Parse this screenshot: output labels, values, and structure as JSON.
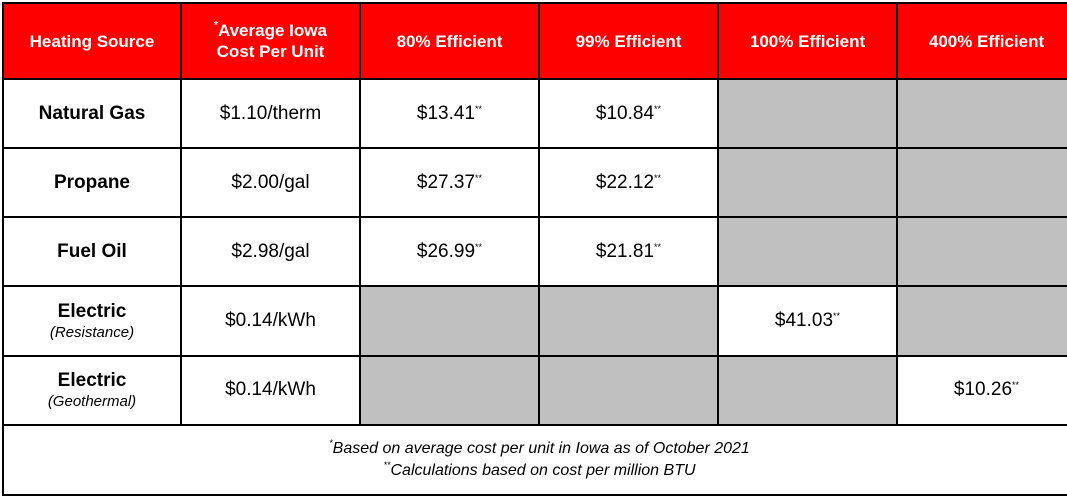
{
  "headers": [
    {
      "text": "Heating Source",
      "sup": ""
    },
    {
      "text": "Average Iowa Cost Per Unit",
      "line1": "Average Iowa",
      "line2": "Cost Per Unit",
      "sup": "*"
    },
    {
      "text": "80% Efficient",
      "sup": ""
    },
    {
      "text": "99% Efficient",
      "sup": ""
    },
    {
      "text": "100% Efficient",
      "sup": ""
    },
    {
      "text": "400% Efficient",
      "sup": ""
    }
  ],
  "rows": [
    {
      "source": "Natural Gas",
      "sub": "",
      "cost": "$1.10/therm",
      "cells": [
        "$13.41",
        "$10.84",
        null,
        null
      ]
    },
    {
      "source": "Propane",
      "sub": "",
      "cost": "$2.00/gal",
      "cells": [
        "$27.37",
        "$22.12",
        null,
        null
      ]
    },
    {
      "source": "Fuel Oil",
      "sub": "",
      "cost": "$2.98/gal",
      "cells": [
        "$26.99",
        "$21.81",
        null,
        null
      ]
    },
    {
      "source": "Electric",
      "sub": "(Resistance)",
      "cost": "$0.14/kWh",
      "cells": [
        null,
        null,
        "$41.03",
        null
      ]
    },
    {
      "source": "Electric",
      "sub": "(Geothermal)",
      "cost": "$0.14/kWh",
      "cells": [
        null,
        null,
        null,
        "$10.26"
      ]
    }
  ],
  "value_marker": "**",
  "footnotes": [
    {
      "marker": "*",
      "text": "Based on average cost per unit in Iowa as of October 2021"
    },
    {
      "marker": "**",
      "text": "Calculations based on cost per million BTU"
    }
  ],
  "colors": {
    "header_bg": "#ff0000",
    "header_text": "#ffffff",
    "empty_cell": "#c0c0c0",
    "border": "#000000"
  }
}
